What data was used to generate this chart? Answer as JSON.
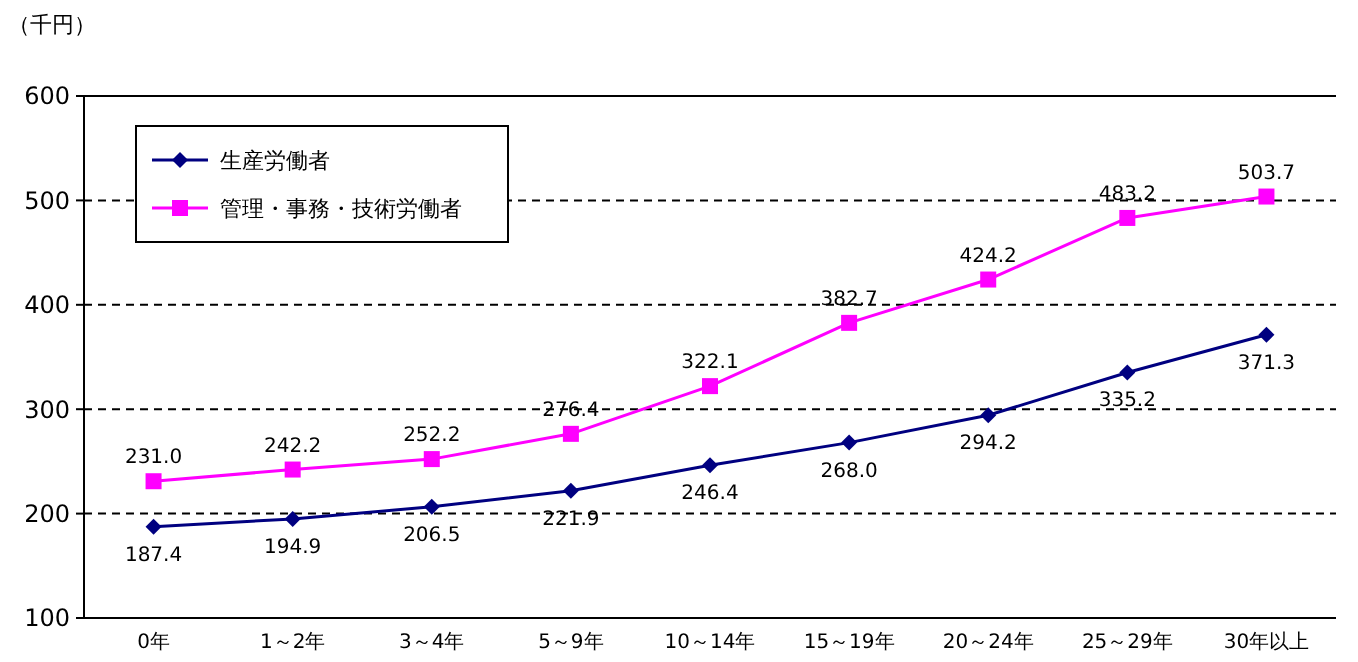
{
  "chart_data": {
    "type": "line",
    "ylabel": "（千円）",
    "categories": [
      "0年",
      "1～2年",
      "3～4年",
      "5～9年",
      "10～14年",
      "15～19年",
      "20～24年",
      "25～29年",
      "30年以上"
    ],
    "series": [
      {
        "name": "生産労働者",
        "color": "#000080",
        "marker": "diamond",
        "values": [
          187.4,
          194.9,
          206.5,
          221.9,
          246.4,
          268.0,
          294.2,
          335.2,
          371.3
        ],
        "value_labels": [
          "187.4",
          "194.9",
          "206.5",
          "221.9",
          "246.4",
          "268.0",
          "294.2",
          "335.2",
          "371.3"
        ]
      },
      {
        "name": "管理・事務・技術労働者",
        "color": "#ff00ff",
        "marker": "square",
        "values": [
          231.0,
          242.2,
          252.2,
          276.4,
          322.1,
          382.7,
          424.2,
          483.2,
          503.7
        ],
        "value_labels": [
          "231.0",
          "242.2",
          "252.2",
          "276.4",
          "322.1",
          "382.7",
          "424.2",
          "483.2",
          "503.7"
        ]
      }
    ],
    "ylim": [
      100,
      600
    ],
    "yticks": [
      100,
      200,
      300,
      400,
      500,
      600
    ],
    "grid": "y",
    "legend": "top left",
    "line_style": "solid"
  }
}
